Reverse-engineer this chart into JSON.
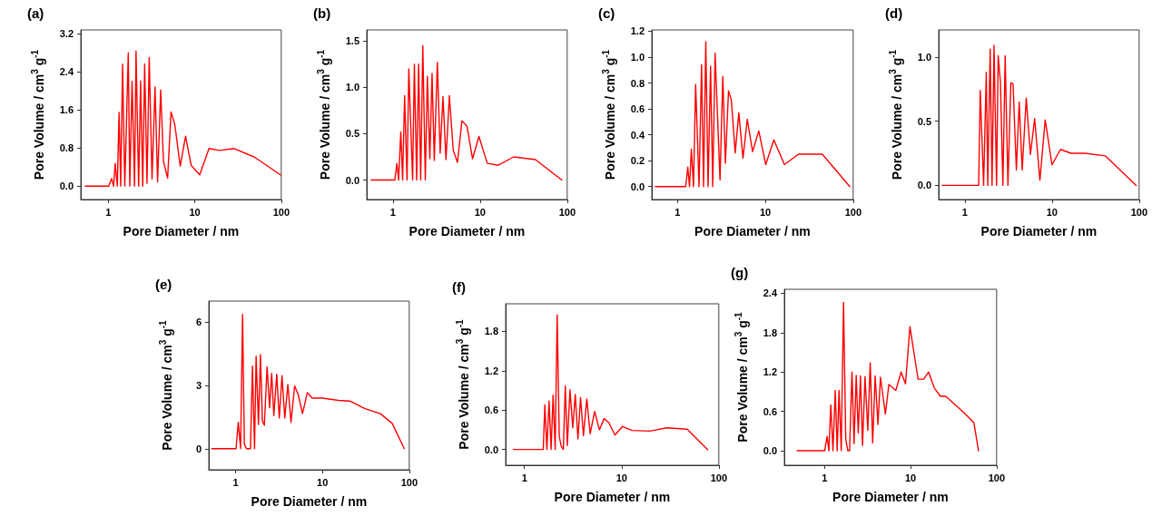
{
  "chart_data": [
    {
      "type": "line",
      "title": "(a)",
      "xlabel": "Pore Diameter / nm",
      "ylabel": "Pore Volume / cm$^{3}$ g$^{-1}$",
      "color": "#ff0000",
      "marker": "none",
      "log": "x",
      "xlim": [
        0.48,
        100
      ],
      "xticks": [
        1,
        10,
        100
      ],
      "ylim": [
        -0.28,
        3.28
      ],
      "yticks": [
        {
          "value": 0,
          "label": "0.0"
        },
        {
          "value": 0.8,
          "label": "0.8"
        },
        {
          "value": 1.6,
          "label": "1.6"
        },
        {
          "value": 2.4,
          "label": "2.4"
        },
        {
          "value": 3.2,
          "label": "3.2"
        }
      ],
      "x": [
        0.54,
        1.01,
        1.09,
        1.15,
        1.2,
        1.27,
        1.33,
        1.39,
        1.46,
        1.55,
        1.7,
        1.77,
        1.88,
        2.01,
        2.09,
        2.24,
        2.36,
        2.5,
        2.63,
        2.8,
        2.97,
        3.2,
        3.47,
        3.71,
        4.03,
        4.34,
        4.85,
        5.31,
        5.89,
        6.78,
        7.82,
        9.07,
        11.4,
        14.6,
        19.2,
        28.6,
        48.9,
        99.6
      ],
      "values": [
        0,
        0,
        0.16,
        0,
        0.48,
        0,
        1.55,
        0,
        2.56,
        0,
        2.8,
        0,
        2.2,
        0,
        2.84,
        0,
        2.21,
        0,
        2.56,
        0.06,
        2.7,
        0.15,
        2.08,
        0.09,
        2.02,
        0.52,
        0.17,
        1.56,
        1.28,
        0.42,
        1.05,
        0.44,
        0.24,
        0.79,
        0.75,
        0.79,
        0.61,
        0.23
      ]
    },
    {
      "type": "line",
      "title": "(b)",
      "xlabel": "Pore Diameter / nm",
      "ylabel": "Pore Volume / cm$^{3}$ g$^{-1}$",
      "color": "#ff0000",
      "marker": "none",
      "log": "x",
      "xlim": [
        0.5,
        100
      ],
      "xticks": [
        1,
        10,
        100
      ],
      "ylim": [
        -0.21,
        1.62
      ],
      "yticks": [
        {
          "value": 0,
          "label": "0.0"
        },
        {
          "value": 0.5,
          "label": "0.5"
        },
        {
          "value": 1,
          "label": "1.0"
        },
        {
          "value": 1.5,
          "label": "1.5"
        }
      ],
      "x": [
        0.56,
        1.05,
        1.11,
        1.16,
        1.23,
        1.29,
        1.36,
        1.45,
        1.52,
        1.68,
        1.76,
        1.87,
        1.97,
        2.08,
        2.2,
        2.35,
        2.48,
        2.65,
        2.81,
        2.98,
        3.23,
        3.48,
        3.75,
        4.06,
        4.44,
        4.92,
        5.5,
        6.19,
        7.07,
        8.19,
        9.7,
        12.1,
        16.2,
        24.3,
        43.2,
        86.7
      ],
      "values": [
        0,
        0,
        0.18,
        0,
        0.52,
        0,
        0.91,
        0,
        1.2,
        0,
        1.25,
        0,
        1.25,
        0,
        1.45,
        0,
        1.12,
        0.23,
        1.15,
        0.21,
        1.27,
        0.29,
        0.9,
        0.22,
        0.91,
        0.32,
        0.19,
        0.64,
        0.58,
        0.23,
        0.47,
        0.18,
        0.16,
        0.25,
        0.22,
        0
      ]
    },
    {
      "type": "line",
      "title": "(c)",
      "xlabel": "Pore Diameter / nm",
      "ylabel": "Pore Volume / cm$^{3}$ g$^{-1}$",
      "color": "#ff0000",
      "marker": "none",
      "log": "x",
      "xlim": [
        0.51,
        100
      ],
      "xticks": [
        1,
        10,
        100
      ],
      "ylim": [
        -0.1,
        1.21
      ],
      "yticks": [
        {
          "value": 0,
          "label": "0.0"
        },
        {
          "value": 0.2,
          "label": "0.2"
        },
        {
          "value": 0.4,
          "label": "0.4"
        },
        {
          "value": 0.6,
          "label": "0.6"
        },
        {
          "value": 0.8,
          "label": "0.8"
        },
        {
          "value": 1,
          "label": "1.0"
        },
        {
          "value": 1.2,
          "label": "1.2"
        }
      ],
      "x": [
        0.56,
        1.24,
        1.31,
        1.37,
        1.44,
        1.52,
        1.61,
        1.76,
        1.88,
        1.98,
        2.1,
        2.23,
        2.38,
        2.52,
        2.68,
        3.05,
        3.28,
        3.51,
        3.81,
        4.1,
        4.54,
        4.99,
        5.57,
        6.23,
        7.16,
        8.42,
        10.1,
        12.5,
        16.5,
        23.9,
        44.5,
        91.6
      ],
      "values": [
        0,
        0,
        0.15,
        0,
        0.29,
        0,
        0.79,
        0,
        0.94,
        0,
        1.12,
        0,
        0.93,
        0,
        1.03,
        0.05,
        0.85,
        0.18,
        0.74,
        0.67,
        0.26,
        0.57,
        0.22,
        0.52,
        0.27,
        0.43,
        0.17,
        0.36,
        0.17,
        0.25,
        0.25,
        0
      ]
    },
    {
      "type": "line",
      "title": "(d)",
      "xlabel": "Pore Diameter / nm",
      "ylabel": "Pore Volume / cm$^{3}$ g$^{-1}$",
      "color": "#ff0000",
      "marker": "none",
      "log": "x",
      "xlim": [
        0.5,
        100
      ],
      "xticks": [
        1,
        10,
        100
      ],
      "ylim": [
        -0.11,
        1.21
      ],
      "yticks": [
        {
          "value": 0,
          "label": "0.0"
        },
        {
          "value": 0.5,
          "label": "0.5"
        },
        {
          "value": 1,
          "label": "1.0"
        }
      ],
      "x": [
        0.55,
        1.44,
        1.5,
        1.64,
        1.76,
        1.83,
        1.95,
        2.05,
        2.16,
        2.31,
        2.41,
        2.56,
        2.73,
        2.9,
        3.12,
        3.37,
        3.57,
        3.9,
        4.2,
        4.55,
        5.06,
        5.65,
        6.32,
        7.26,
        8.35,
        10,
        12.5,
        16.5,
        23.9,
        40.8,
        92.5
      ],
      "values": [
        0,
        0,
        0.74,
        0,
        0.88,
        0,
        1.06,
        0,
        1.09,
        0,
        1.01,
        0.8,
        0,
        1.01,
        0,
        0.8,
        0.79,
        0.12,
        0.65,
        0.12,
        0.68,
        0.24,
        0.52,
        0.04,
        0.51,
        0.16,
        0.28,
        0.25,
        0.25,
        0.23,
        0
      ]
    },
    {
      "type": "line",
      "title": "(e)",
      "xlabel": "Pore Diameter / nm",
      "ylabel": "Pore Volume / cm$^{3}$ g$^{-1}$",
      "color": "#ff0000",
      "marker": "none",
      "log": "x",
      "xlim": [
        0.49,
        100
      ],
      "xticks": [
        1,
        10,
        100
      ],
      "ylim": [
        -1,
        7
      ],
      "yticks": [
        0,
        3,
        6
      ],
      "x": [
        0.53,
        1.01,
        1.07,
        1.14,
        1.2,
        1.26,
        1.33,
        1.48,
        1.56,
        1.65,
        1.72,
        1.83,
        1.93,
        2.03,
        2.14,
        2.3,
        2.46,
        2.6,
        2.75,
        2.97,
        3.18,
        3.42,
        3.68,
        3.99,
        4.34,
        4.78,
        5.26,
        5.89,
        6.69,
        7.61,
        10,
        15.3,
        20.6,
        30.9,
        46.4,
        63.6,
        87.6
      ],
      "values": [
        0,
        0,
        1.25,
        0,
        6.37,
        0.21,
        0,
        0,
        3.92,
        0,
        4.39,
        1.15,
        4.46,
        1.32,
        1.11,
        3.88,
        1.94,
        3.57,
        1.57,
        3.53,
        1.45,
        3.46,
        1.45,
        3.05,
        1.25,
        2.98,
        2.56,
        1.66,
        2.66,
        2.4,
        2.4,
        2.29,
        2.26,
        1.9,
        1.66,
        1.2,
        0
      ]
    },
    {
      "type": "line",
      "title": "(f)",
      "xlabel": "Pore Diameter / nm",
      "ylabel": "Pore Volume / cm$^{3}$ g$^{-1}$",
      "color": "#ff0000",
      "marker": "none",
      "log": "x",
      "xlim": [
        0.64,
        100
      ],
      "xticks": [
        1,
        10,
        100
      ],
      "ylim": [
        -0.24,
        2.22
      ],
      "yticks": [
        {
          "value": 0,
          "label": "0.0"
        },
        {
          "value": 0.6,
          "label": "0.6"
        },
        {
          "value": 1.2,
          "label": "1.2"
        },
        {
          "value": 1.8,
          "label": "1.8"
        }
      ],
      "x": [
        0.77,
        1.56,
        1.62,
        1.7,
        1.79,
        1.88,
        1.97,
        2.07,
        2.17,
        2.28,
        2.39,
        2.51,
        2.63,
        2.76,
        2.94,
        3.14,
        3.33,
        3.55,
        3.78,
        4.04,
        4.38,
        4.74,
        5.27,
        5.9,
        6.59,
        7.38,
        8.53,
        10.2,
        12.8,
        19.5,
        29.1,
        47.2,
        76.6
      ],
      "values": [
        0,
        0,
        0.68,
        0,
        0.74,
        0,
        0.83,
        0,
        2.05,
        0.2,
        0.05,
        0,
        0.97,
        0.06,
        0.91,
        0.33,
        0.84,
        0.16,
        0.79,
        0.21,
        0.77,
        0.24,
        0.58,
        0.3,
        0.47,
        0.41,
        0.22,
        0.35,
        0.29,
        0.28,
        0.33,
        0.31,
        0
      ]
    },
    {
      "type": "line",
      "title": "(g)",
      "xlabel": "Pore Diameter / nm",
      "ylabel": "Pore Volume / cm$^{3}$ g$^{-1}$",
      "color": "#ff0000",
      "marker": "none",
      "log": "x",
      "xlim": [
        0.34,
        100
      ],
      "xticks": [
        1,
        10,
        100
      ],
      "ylim": [
        -0.22,
        2.46
      ],
      "yticks": [
        {
          "value": 0,
          "label": "0.0"
        },
        {
          "value": 0.6,
          "label": "0.6"
        },
        {
          "value": 1.2,
          "label": "1.2"
        },
        {
          "value": 1.8,
          "label": "1.8"
        },
        {
          "value": 2.4,
          "label": "2.4"
        }
      ],
      "x": [
        0.48,
        1,
        1.07,
        1.12,
        1.18,
        1.25,
        1.33,
        1.4,
        1.47,
        1.56,
        1.66,
        1.76,
        1.86,
        1.95,
        2.08,
        2.2,
        2.33,
        2.46,
        2.61,
        2.76,
        2.95,
        3.18,
        3.39,
        3.62,
        3.87,
        4.17,
        4.46,
        5.09,
        5.58,
        6.73,
        7.76,
        8.71,
        9.82,
        12.2,
        14.2,
        16.2,
        18.8,
        22.2,
        25.6,
        41.7,
        54.4,
        61.6
      ],
      "values": [
        0,
        0,
        0.22,
        0,
        0.7,
        0,
        0.92,
        0,
        0.92,
        0,
        2.26,
        0.18,
        0,
        0,
        1.2,
        0.11,
        1.15,
        0.27,
        1.14,
        0.08,
        1.13,
        0.31,
        1.34,
        0.12,
        1.14,
        0.4,
        1.12,
        0.56,
        1.01,
        0.92,
        1.2,
        1.02,
        1.89,
        1.09,
        1.09,
        1.2,
        0.96,
        0.83,
        0.83,
        0.58,
        0.43,
        0
      ]
    }
  ]
}
